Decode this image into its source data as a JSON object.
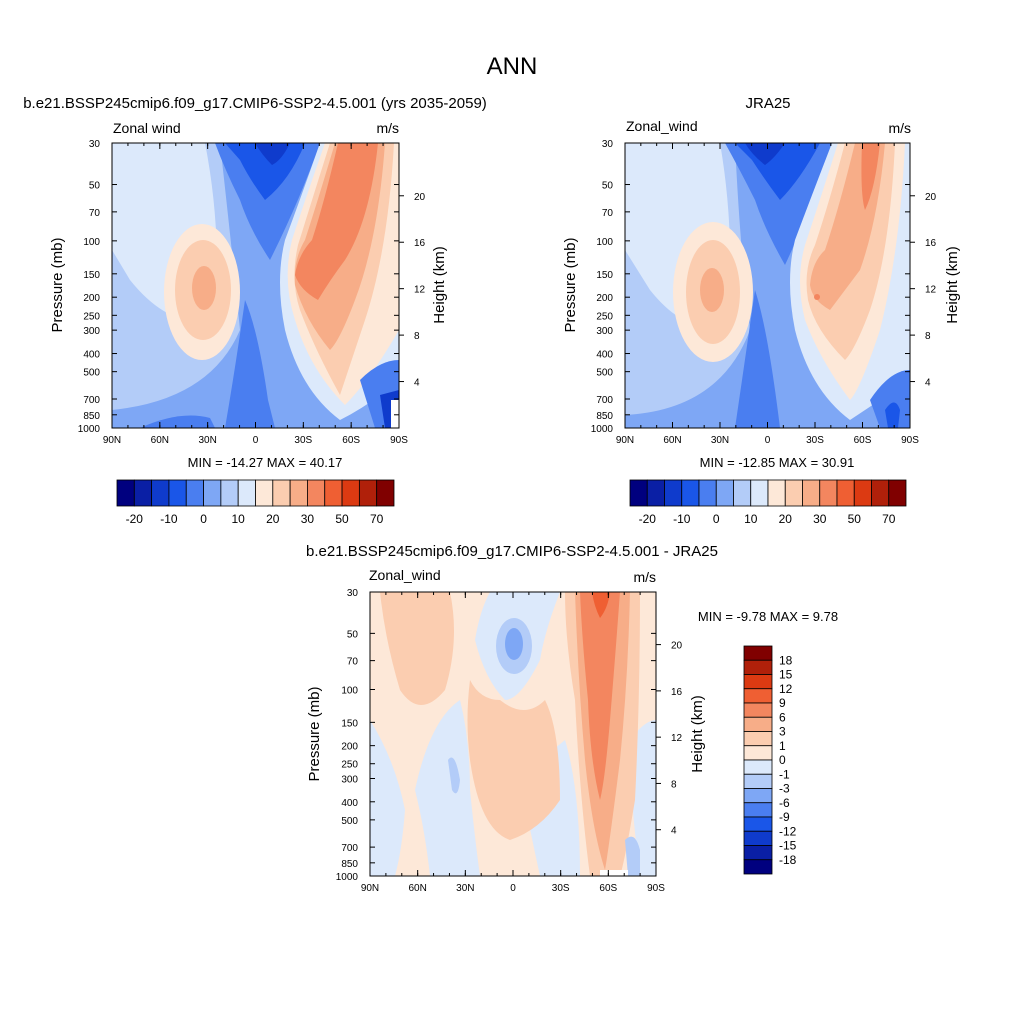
{
  "page": {
    "title": "ANN"
  },
  "units": "m/s",
  "variable": "Zonal wind",
  "variable_alt": "Zonal_wind",
  "x_ticks": [
    "90N",
    "60N",
    "30N",
    "0",
    "30S",
    "60S",
    "90S"
  ],
  "y_ticks": [
    "30",
    "50",
    "70",
    "100",
    "150",
    "200",
    "250",
    "300",
    "400",
    "500",
    "700",
    "850",
    "1000"
  ],
  "height_ticks": [
    "4",
    "8",
    "12",
    "16",
    "20"
  ],
  "ylabel": "Pressure (mb)",
  "ylabel_right": "Height (km)",
  "panels": [
    {
      "title": "b.e21.BSSP245cmip6.f09_g17.CMIP6-SSP2-4.5.001 (yrs 2035-2059)",
      "subtitle_left": "Zonal wind",
      "subtitle_right": "m/s",
      "stats": "MIN = -14.27  MAX =  40.17"
    },
    {
      "title": "JRA25",
      "subtitle_left": "Zonal_wind",
      "subtitle_right": "m/s",
      "stats": "MIN = -12.85  MAX =  30.91"
    },
    {
      "title": "b.e21.BSSP245cmip6.f09_g17.CMIP6-SSP2-4.5.001 - JRA25",
      "subtitle_left": "Zonal_wind",
      "subtitle_right": "m/s",
      "stats": "MIN =  -9.78  MAX =   9.78"
    }
  ],
  "colorbar_top": {
    "colors": [
      "#00007f",
      "#0a1fa5",
      "#0f3bcc",
      "#1a56e8",
      "#4a7ef0",
      "#7ea7f5",
      "#b3ccf8",
      "#dce9fb",
      "#fde8d8",
      "#fbcdb0",
      "#f7ad88",
      "#f3865f",
      "#ef5f33",
      "#dc3a12",
      "#b0200a",
      "#800000"
    ],
    "labels": [
      "-20",
      "-10",
      "0",
      "10",
      "20",
      "30",
      "50",
      "70"
    ]
  },
  "colorbar_diff": {
    "colors": [
      "#800000",
      "#b0200a",
      "#dc3a12",
      "#ef5f33",
      "#f3865f",
      "#f7ad88",
      "#fbcdb0",
      "#fde8d8",
      "#dce9fb",
      "#b3ccf8",
      "#7ea7f5",
      "#4a7ef0",
      "#1a56e8",
      "#0f3bcc",
      "#0a1fa5",
      "#00007f"
    ],
    "labels": [
      "18",
      "15",
      "12",
      "9",
      "6",
      "3",
      "1",
      "0",
      "-1",
      "-3",
      "-6",
      "-9",
      "-12",
      "-15",
      "-18"
    ]
  },
  "chart_data": [
    {
      "type": "heatmap",
      "title": "b.e21.BSSP245cmip6.f09_g17.CMIP6-SSP2-4.5.001 (yrs 2035-2059)",
      "variable": "Zonal wind",
      "units": "m/s",
      "xlabel": "",
      "ylabel": "Pressure (mb)",
      "ylabel_right": "Height (km)",
      "x": [
        "90N",
        "60N",
        "30N",
        "0",
        "30S",
        "60S",
        "90S"
      ],
      "y": [
        30,
        50,
        70,
        100,
        150,
        200,
        250,
        300,
        400,
        500,
        700,
        850,
        1000
      ],
      "min": -14.27,
      "max": 40.17,
      "levels": [
        -20,
        -15,
        -10,
        -5,
        0,
        5,
        10,
        15,
        20,
        25,
        30,
        40,
        50,
        60,
        70
      ]
    },
    {
      "type": "heatmap",
      "title": "JRA25",
      "variable": "Zonal_wind",
      "units": "m/s",
      "xlabel": "",
      "ylabel": "Pressure (mb)",
      "ylabel_right": "Height (km)",
      "x": [
        "90N",
        "60N",
        "30N",
        "0",
        "30S",
        "60S",
        "90S"
      ],
      "y": [
        30,
        50,
        70,
        100,
        150,
        200,
        250,
        300,
        400,
        500,
        700,
        850,
        1000
      ],
      "min": -12.85,
      "max": 30.91,
      "levels": [
        -20,
        -15,
        -10,
        -5,
        0,
        5,
        10,
        15,
        20,
        25,
        30,
        40,
        50,
        60,
        70
      ]
    },
    {
      "type": "heatmap",
      "title": "b.e21.BSSP245cmip6.f09_g17.CMIP6-SSP2-4.5.001 - JRA25",
      "variable": "Zonal_wind",
      "units": "m/s",
      "xlabel": "",
      "ylabel": "Pressure (mb)",
      "ylabel_right": "Height (km)",
      "x": [
        "90N",
        "60N",
        "30N",
        "0",
        "30S",
        "60S",
        "90S"
      ],
      "y": [
        30,
        50,
        70,
        100,
        150,
        200,
        250,
        300,
        400,
        500,
        700,
        850,
        1000
      ],
      "min": -9.78,
      "max": 9.78,
      "levels": [
        -18,
        -15,
        -12,
        -9,
        -6,
        -3,
        -1,
        0,
        1,
        3,
        6,
        9,
        12,
        15,
        18
      ]
    }
  ]
}
